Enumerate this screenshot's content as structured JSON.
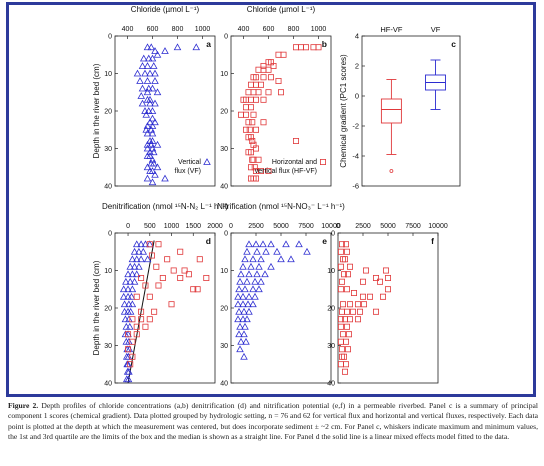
{
  "caption": {
    "label": "Figure 2.",
    "text": "Depth profiles of chloride concentrations (a,b) denitrification (d) and nitrification potential (e,f) in a permeable riverbed. Panel c is a summary of principal component 1 scores (chemical gradient). Data plotted grouped by hydrologic setting, n = 76 and 62 for vertical flux and horizontal and vertical fluxes, respectively. Each data point is plotted at the depth at which the measurement was centered, but does incorporate sediment ± ~2 cm. For Panel c, whiskers indicate maximum and minimum values, the 1st and 3rd quartile are the limits of the box and the median is shown as a straight line. For Panel d the solid line is a linear mixed effects model fitted to the data."
  },
  "colors": {
    "vf": "#2b2bd0",
    "hf": "#e0383a",
    "frame": "#2d3a9b"
  },
  "shared": {
    "depth_label": "Depth in the river bed (cm)",
    "depth_ticks": [
      "0",
      "10",
      "20",
      "30",
      "40"
    ]
  },
  "chart_data": [
    {
      "panel": "a",
      "type": "scatter",
      "title": "Chloride (µmol L⁻¹)",
      "x_ticks": [
        "400",
        "600",
        "800",
        "1000"
      ],
      "xlim": [
        300,
        1100
      ],
      "ylim": [
        0,
        40
      ],
      "ylabel": "Depth in the river bed (cm)",
      "legend": "Vertical flux (VF)",
      "legend_position": "bottom-right",
      "series": [
        {
          "name": "Vertical flux (VF)",
          "color": "#2b2bd0",
          "marker": "triangle",
          "x": [
            560,
            590,
            620,
            700,
            800,
            950,
            530,
            570,
            600,
            640,
            520,
            560,
            610,
            480,
            540,
            580,
            620,
            500,
            560,
            620,
            520,
            570,
            600,
            560,
            640,
            510,
            560,
            580,
            520,
            580,
            620,
            540,
            570,
            600,
            550,
            600,
            580,
            620,
            560,
            600,
            550,
            590,
            560,
            600,
            580,
            600,
            560,
            590,
            640,
            560,
            600,
            580,
            610,
            560,
            580,
            600,
            590,
            610,
            560,
            640,
            580,
            600,
            620,
            560,
            700,
            600
          ],
          "y": [
            3,
            3,
            4,
            4,
            3,
            3,
            6,
            6,
            6,
            5,
            8,
            8,
            8,
            10,
            10,
            10,
            10,
            12,
            12,
            12,
            14,
            14,
            14,
            15,
            15,
            16,
            17,
            17,
            18,
            18,
            18,
            20,
            20,
            20,
            21,
            22,
            23,
            23,
            24,
            24,
            25,
            25,
            26,
            26,
            28,
            28,
            29,
            29,
            29,
            30,
            30,
            31,
            31,
            32,
            32,
            33,
            34,
            34,
            35,
            35,
            36,
            36,
            37,
            38,
            38,
            39
          ]
        }
      ]
    },
    {
      "panel": "b",
      "type": "scatter",
      "title": "Chloride (µmol L⁻¹)",
      "x_ticks": [
        "400",
        "600",
        "800",
        "1000"
      ],
      "xlim": [
        300,
        1100
      ],
      "ylim": [
        0,
        40
      ],
      "legend": "Horizontal and vertical flux (HF-VF)",
      "legend_position": "bottom-right",
      "series": [
        {
          "name": "Horizontal and vertical flux (HF-VF)",
          "color": "#e0383a",
          "marker": "square",
          "x": [
            820,
            860,
            900,
            960,
            1000,
            680,
            720,
            600,
            620,
            560,
            640,
            520,
            560,
            600,
            480,
            500,
            560,
            620,
            680,
            460,
            500,
            540,
            440,
            480,
            520,
            600,
            700,
            400,
            420,
            460,
            500,
            560,
            420,
            460,
            380,
            420,
            480,
            440,
            470,
            560,
            420,
            450,
            500,
            440,
            460,
            470,
            480,
            500,
            820,
            440,
            460,
            470,
            520,
            480,
            460,
            490,
            500,
            540,
            600,
            460,
            480,
            500
          ],
          "y": [
            3,
            3,
            3,
            3,
            3,
            5,
            5,
            7,
            7,
            8,
            8,
            9,
            9,
            9,
            11,
            11,
            11,
            11,
            12,
            13,
            13,
            13,
            15,
            15,
            15,
            15,
            15,
            17,
            17,
            17,
            17,
            17,
            19,
            19,
            21,
            21,
            21,
            23,
            23,
            23,
            25,
            25,
            25,
            27,
            27,
            28,
            29,
            30,
            28,
            31,
            31,
            33,
            33,
            33,
            35,
            35,
            36,
            36,
            36,
            38,
            38,
            38
          ]
        }
      ]
    },
    {
      "panel": "c",
      "type": "box",
      "ylabel": "Chemical gradient (PC1 scores)",
      "categories": [
        "HF-VF",
        "VF"
      ],
      "ylim": [
        -6,
        4
      ],
      "y_ticks": [
        "-6",
        "-4",
        "-2",
        "0",
        "2",
        "4"
      ],
      "boxes": [
        {
          "name": "HF-VF",
          "color": "#e0383a",
          "min": -3.9,
          "q1": -1.8,
          "median": -0.9,
          "q3": -0.2,
          "max": 1.1,
          "outliers": [
            -5
          ]
        },
        {
          "name": "VF",
          "color": "#2b2bd0",
          "min": -0.9,
          "q1": 0.4,
          "median": 0.9,
          "q3": 1.4,
          "max": 2.4,
          "outliers": []
        }
      ]
    },
    {
      "panel": "d",
      "type": "scatter",
      "title": "Denitrification (nmol ¹⁵N-N₂ L⁻¹ h⁻¹)",
      "x_ticks": [
        "0",
        "500",
        "1000",
        "1500",
        "2000"
      ],
      "xlim": [
        -300,
        2000
      ],
      "ylim": [
        0,
        40
      ],
      "ylabel": "Depth in the river bed (cm)",
      "fit_line": {
        "x": [
          600,
          0
        ],
        "y": [
          2,
          40
        ]
      },
      "series": [
        {
          "name": "VF",
          "color": "#2b2bd0",
          "marker": "triangle",
          "x": [
            200,
            300,
            400,
            500,
            150,
            250,
            350,
            100,
            200,
            300,
            450,
            50,
            150,
            250,
            0,
            100,
            200,
            -50,
            50,
            150,
            -100,
            0,
            100,
            -100,
            0,
            80,
            -80,
            20,
            100,
            -80,
            0,
            60,
            -60,
            20,
            -40,
            40,
            -60,
            0,
            -40,
            20,
            -20,
            30,
            -30,
            10,
            -20,
            0,
            -10,
            20,
            -30,
            10
          ],
          "y": [
            3,
            3,
            3,
            3,
            5,
            5,
            5,
            7,
            7,
            7,
            7,
            9,
            9,
            9,
            11,
            11,
            11,
            13,
            13,
            13,
            15,
            15,
            15,
            17,
            17,
            17,
            19,
            19,
            19,
            21,
            21,
            21,
            23,
            23,
            25,
            25,
            27,
            27,
            29,
            29,
            31,
            31,
            33,
            33,
            35,
            35,
            37,
            37,
            39,
            39
          ]
        },
        {
          "name": "HF-VF",
          "color": "#e0383a",
          "marker": "square",
          "x": [
            500,
            700,
            1200,
            550,
            900,
            1650,
            650,
            1050,
            1300,
            1400,
            1800,
            300,
            800,
            1200,
            1500,
            400,
            700,
            1600,
            200,
            500,
            1000,
            300,
            600,
            100,
            300,
            500,
            200,
            400,
            0,
            200,
            100,
            0,
            100,
            50
          ],
          "y": [
            3,
            3,
            5,
            6,
            7,
            7,
            9,
            10,
            10,
            11,
            12,
            12,
            12,
            12,
            15,
            14,
            14,
            15,
            17,
            17,
            19,
            21,
            21,
            23,
            23,
            23,
            25,
            25,
            27,
            27,
            29,
            31,
            33,
            35
          ]
        }
      ]
    },
    {
      "panel": "e",
      "type": "scatter",
      "title": "Nitrification (nmol ¹⁵N-NO₃⁻ L⁻¹ h⁻¹)",
      "x_ticks": [
        "0",
        "2500",
        "5000",
        "7500",
        "10000"
      ],
      "xlim": [
        0,
        10000
      ],
      "ylim": [
        0,
        40
      ],
      "series": [
        {
          "name": "VF",
          "color": "#2b2bd0",
          "marker": "triangle",
          "x": [
            1800,
            2500,
            3200,
            4000,
            5500,
            6800,
            1600,
            2600,
            3500,
            4600,
            7600,
            1400,
            2200,
            3000,
            5000,
            6000,
            1200,
            2000,
            2800,
            4000,
            1000,
            1800,
            2600,
            3400,
            900,
            1600,
            2400,
            3000,
            800,
            1400,
            2200,
            2800,
            700,
            1200,
            1800,
            2400,
            700,
            1200,
            1700,
            2200,
            800,
            1300,
            1800,
            700,
            1200,
            1600,
            900,
            1400,
            800,
            1300,
            1000,
            1500,
            900,
            1300
          ],
          "y": [
            3,
            3,
            3,
            3,
            3,
            3,
            5,
            5,
            5,
            5,
            5,
            7,
            7,
            7,
            7,
            7,
            9,
            9,
            9,
            9,
            11,
            11,
            11,
            11,
            13,
            13,
            13,
            13,
            15,
            15,
            15,
            15,
            17,
            17,
            17,
            17,
            19,
            19,
            19,
            19,
            21,
            21,
            21,
            23,
            23,
            23,
            25,
            25,
            27,
            27,
            29,
            29,
            31,
            33
          ]
        }
      ]
    },
    {
      "panel": "f",
      "type": "scatter",
      "title": "",
      "x_ticks": [
        "0",
        "2500",
        "5000",
        "7500",
        "10000"
      ],
      "xlim": [
        0,
        10000
      ],
      "ylim": [
        0,
        40
      ],
      "series": [
        {
          "name": "HF-VF",
          "color": "#e0383a",
          "marker": "square",
          "x": [
            400,
            800,
            300,
            900,
            500,
            700,
            300,
            1200,
            2800,
            4800,
            600,
            1000,
            3800,
            5000,
            400,
            2500,
            4200,
            5000,
            300,
            900,
            1600,
            2500,
            3200,
            4500,
            500,
            1200,
            2000,
            2600,
            400,
            900,
            1500,
            2200,
            3800,
            300,
            700,
            1200,
            2000,
            300,
            900,
            500,
            1100,
            300,
            800,
            400,
            1000,
            400,
            600,
            300,
            800,
            700
          ],
          "y": [
            3,
            3,
            5,
            5,
            7,
            7,
            9,
            9,
            10,
            10,
            11,
            11,
            12,
            12,
            13,
            13,
            13,
            15,
            15,
            15,
            16,
            17,
            17,
            17,
            19,
            19,
            19,
            19,
            21,
            21,
            21,
            21,
            21,
            23,
            23,
            23,
            23,
            25,
            25,
            27,
            27,
            29,
            29,
            31,
            31,
            33,
            33,
            35,
            35,
            37
          ]
        }
      ]
    }
  ]
}
